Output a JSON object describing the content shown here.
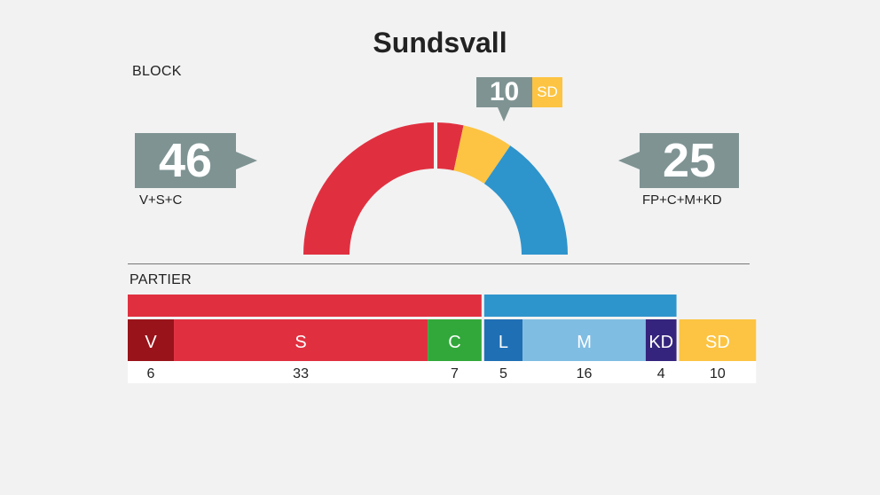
{
  "title": "Sundsvall",
  "sections": {
    "block": "BLOCK",
    "parties": "PARTIER"
  },
  "blocks": {
    "left": {
      "seats": "46",
      "label": "V+S+C"
    },
    "right": {
      "seats": "25",
      "label": "FP+C+M+KD"
    },
    "center": {
      "seats": "10",
      "label": "SD"
    }
  },
  "colors": {
    "left_block": "#e03040",
    "right_block": "#2e94cc",
    "sd": "#fcc442",
    "callout": "#7f9393"
  },
  "chart_data": [
    {
      "type": "pie",
      "variant": "half-donut",
      "total_seats": 81,
      "slices": [
        {
          "name": "V+S+C",
          "value": 46,
          "color": "#e03040"
        },
        {
          "name": "SD",
          "value": 10,
          "color": "#fcc442"
        },
        {
          "name": "FP+C+M+KD",
          "value": 25,
          "color": "#2e94cc"
        }
      ]
    },
    {
      "type": "bar",
      "variant": "stacked-horizontal",
      "categories": [
        "V",
        "S",
        "C",
        "L",
        "M",
        "KD",
        "SD"
      ],
      "values": [
        6,
        33,
        7,
        5,
        16,
        4,
        10
      ],
      "colors": [
        "#99131a",
        "#e03040",
        "#32a83a",
        "#1f6fb5",
        "#80bde3",
        "#35247d",
        "#fcc442"
      ],
      "block_groups": [
        {
          "name": "V+S+C",
          "parties": [
            "V",
            "S",
            "C"
          ],
          "color": "#e03040"
        },
        {
          "name": "FP+C+M+KD",
          "parties": [
            "L",
            "M",
            "KD"
          ],
          "color": "#2e94cc"
        },
        {
          "name": "SD",
          "parties": [
            "SD"
          ],
          "color": null
        }
      ]
    }
  ]
}
